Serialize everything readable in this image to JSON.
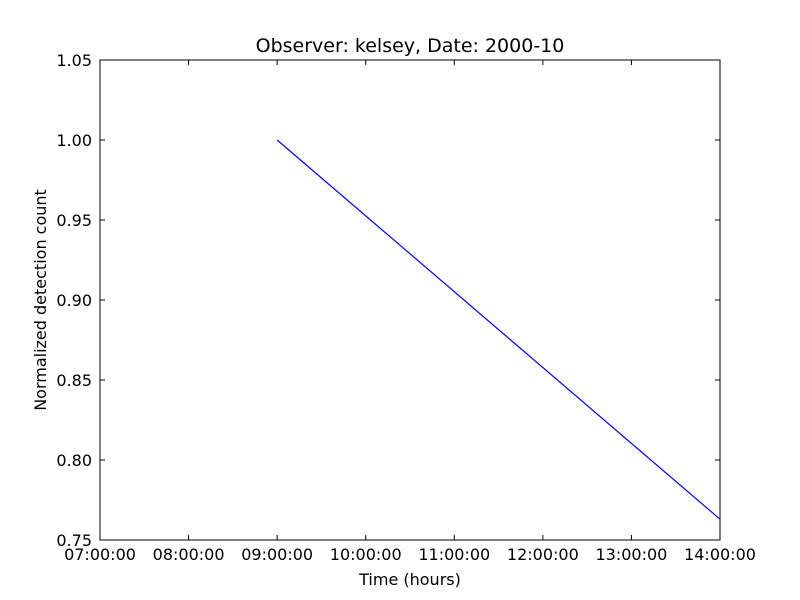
{
  "chart_data": {
    "type": "line",
    "title": "Observer: kelsey, Date: 2000-10",
    "xlabel": "Time (hours)",
    "ylabel": "Normalized detection count",
    "xlim": [
      "07:00:00",
      "14:00:00"
    ],
    "ylim": [
      0.75,
      1.05
    ],
    "x_ticks": [
      "07:00:00",
      "08:00:00",
      "09:00:00",
      "10:00:00",
      "11:00:00",
      "12:00:00",
      "13:00:00",
      "14:00:00"
    ],
    "y_ticks": [
      "0.75",
      "0.80",
      "0.85",
      "0.90",
      "0.95",
      "1.00",
      "1.05"
    ],
    "grid": false,
    "series": [
      {
        "color": "#0000ff",
        "x": [
          "09:00:00",
          "14:00:00"
        ],
        "y": [
          1.0,
          0.763
        ]
      }
    ]
  }
}
